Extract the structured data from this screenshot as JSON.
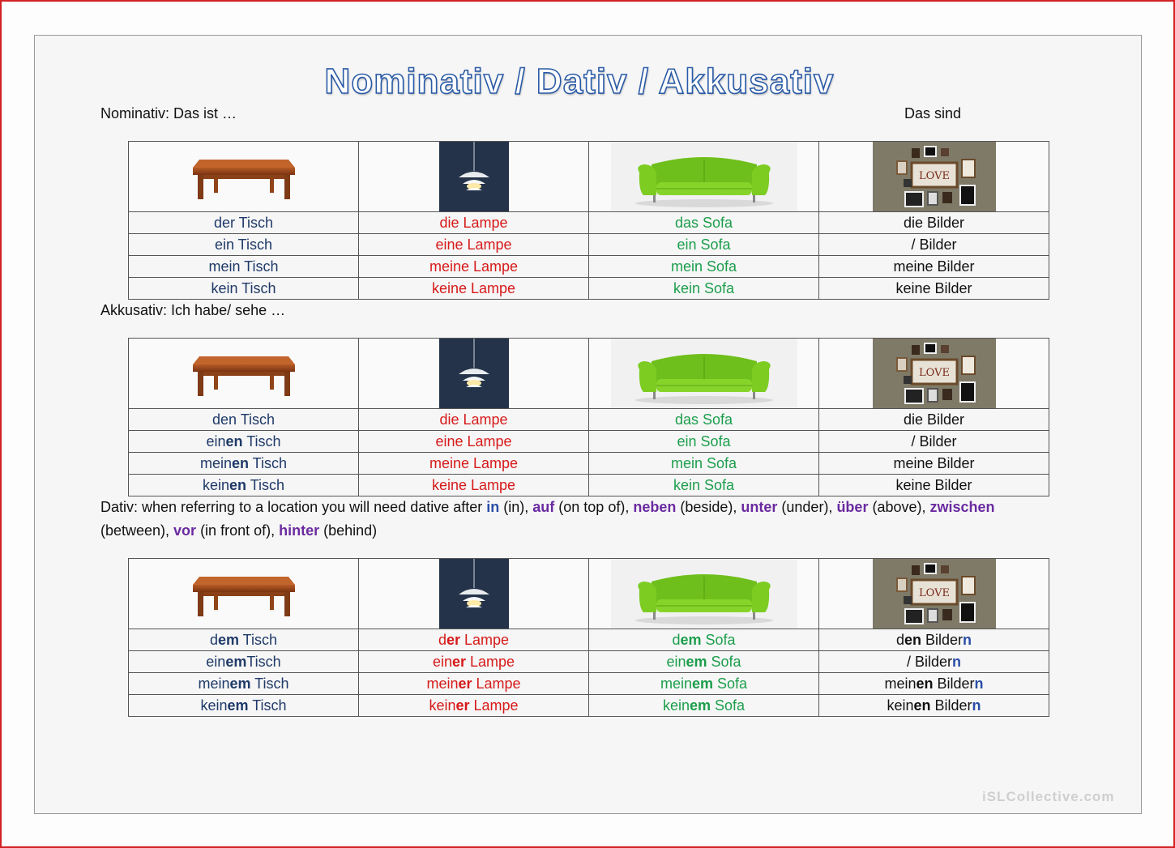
{
  "title": "Nominativ / Dativ / Akkusativ",
  "nominativ_label": "Nominativ: Das ist …",
  "plural_label": "Das sind",
  "akkusativ_label": "Akkusativ: Ich habe/ sehe …",
  "dativ_text": {
    "p1": "Dativ: when referring to a location you will need dative after ",
    "in": "in",
    "p2": " (in), ",
    "auf": "auf",
    "p3": " (on top of), ",
    "neben": "neben",
    "p4": " (beside), ",
    "unter": "unter",
    "p5": " (under), ",
    "ueber": "über",
    "p6": " (above), ",
    "zwischen": "zwischen",
    "p7": "(between), ",
    "vor": "vor",
    "p8": " (in front of), ",
    "hinter": "hinter",
    "p9": " (behind)"
  },
  "watermark": "iSLCollective.com",
  "pictures": {
    "table": "table-image",
    "lamp": "lamp-image",
    "sofa": "sofa-image",
    "frames": "picture-frames-image"
  },
  "colors": {
    "masculine": "#1f3a68",
    "feminine": "#d61a1a",
    "neuter": "#1c9e4c",
    "plural": "#111111"
  },
  "nominativ": {
    "tisch": [
      "der Tisch",
      "ein Tisch",
      "mein Tisch",
      "kein Tisch"
    ],
    "lampe": [
      "die Lampe",
      "eine Lampe",
      "meine Lampe",
      "keine Lampe"
    ],
    "sofa": [
      "das Sofa",
      "ein Sofa",
      "mein Sofa",
      "kein Sofa"
    ],
    "bilder": [
      "die Bilder",
      "/ Bilder",
      "meine Bilder",
      "keine Bilder"
    ]
  },
  "akkusativ": {
    "tisch": [
      [
        "den",
        " Tisch"
      ],
      [
        "ein",
        "en",
        " Tisch"
      ],
      [
        "mein",
        "en",
        " Tisch"
      ],
      [
        "kein",
        "en",
        " Tisch"
      ]
    ],
    "lampe": [
      "die Lampe",
      "eine Lampe",
      "meine Lampe",
      "keine Lampe"
    ],
    "sofa": [
      "das Sofa",
      "ein Sofa",
      "mein Sofa",
      "kein Sofa"
    ],
    "bilder": [
      "die Bilder",
      "/ Bilder",
      "meine Bilder",
      "keine Bilder"
    ]
  },
  "dativ": {
    "tisch": [
      [
        "d",
        "em",
        " Tisch"
      ],
      [
        "ein",
        "em",
        "Tisch"
      ],
      [
        "mein",
        "em",
        " Tisch"
      ],
      [
        "kein",
        "em",
        " Tisch"
      ]
    ],
    "lampe": [
      [
        "d",
        "er",
        " Lampe"
      ],
      [
        "ein",
        "er",
        " Lampe"
      ],
      [
        "mein",
        "er",
        " Lampe"
      ],
      [
        "kein",
        "er",
        " Lampe"
      ]
    ],
    "sofa": [
      [
        "d",
        "em",
        " Sofa"
      ],
      [
        "ein",
        "em",
        " Sofa"
      ],
      [
        "mein",
        "em",
        " Sofa"
      ],
      [
        "kein",
        "em",
        " Sofa"
      ]
    ],
    "bilder": [
      [
        "d",
        "en",
        " Bilder",
        "n"
      ],
      [
        "/ Bilder",
        "n"
      ],
      [
        "mein",
        "en",
        " Bilder",
        "n"
      ],
      [
        "kein",
        "en",
        " Bilder",
        "n"
      ]
    ]
  }
}
